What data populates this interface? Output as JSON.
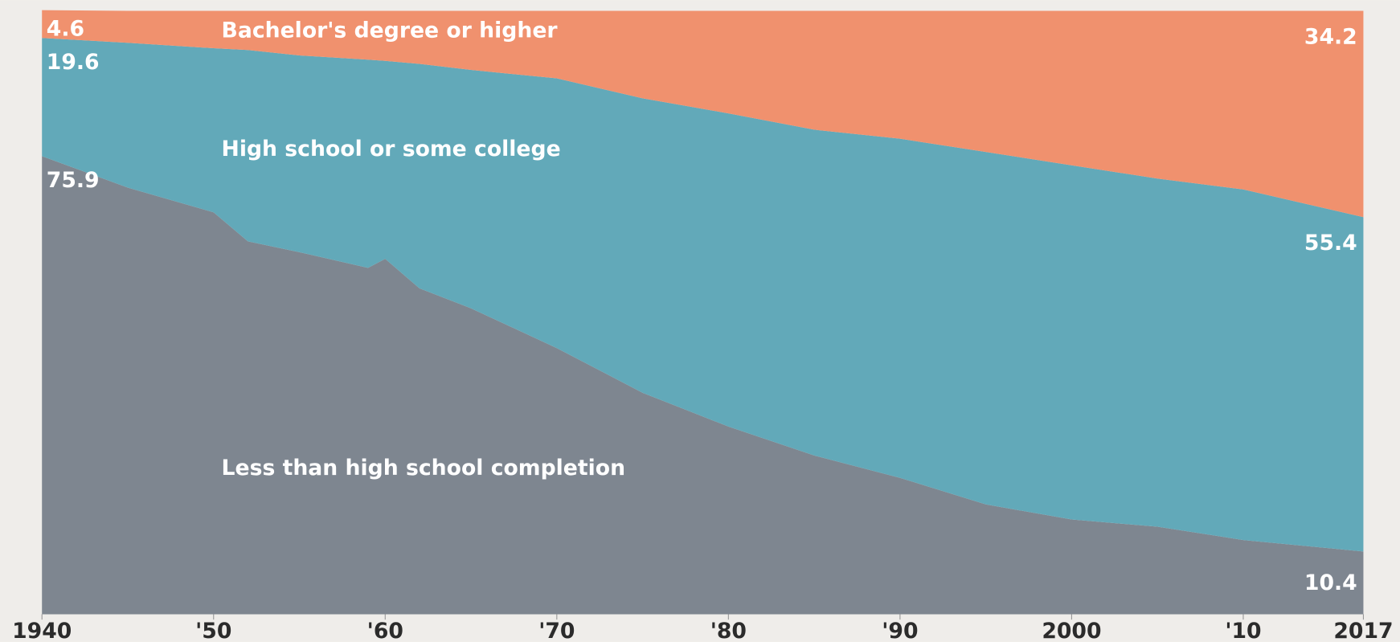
{
  "chart_data": {
    "type": "stacked-area",
    "x": [
      1940,
      1945,
      1950,
      1952,
      1955,
      1959,
      1960,
      1962,
      1965,
      1970,
      1975,
      1980,
      1985,
      1990,
      1995,
      2000,
      2005,
      2010,
      2017
    ],
    "series": [
      {
        "name": "Less than high school completion",
        "color": "#7e8690",
        "values": [
          75.9,
          70.7,
          66.6,
          61.8,
          60.0,
          57.4,
          58.9,
          54.0,
          50.7,
          44.1,
          36.7,
          31.1,
          26.3,
          22.6,
          18.2,
          15.7,
          14.5,
          12.3,
          10.4
        ]
      },
      {
        "name": "High school or some college",
        "color": "#62a9b9",
        "values": [
          19.6,
          24.0,
          27.2,
          31.7,
          32.6,
          34.5,
          32.8,
          37.2,
          39.5,
          44.7,
          48.8,
          51.9,
          54.0,
          56.2,
          58.4,
          58.7,
          57.7,
          58.1,
          55.4
        ]
      },
      {
        "name": "Bachelor's degree or higher",
        "color": "#f0916e",
        "values": [
          4.6,
          5.3,
          6.2,
          6.5,
          7.4,
          8.1,
          8.3,
          8.8,
          9.8,
          11.2,
          14.5,
          17.0,
          19.7,
          21.2,
          23.4,
          25.6,
          27.8,
          29.6,
          34.2
        ]
      }
    ],
    "xlim": [
      1940,
      2017
    ],
    "xticks": [
      1940,
      {
        "value": 1950,
        "label": "'50"
      },
      {
        "value": 1960,
        "label": "'60"
      },
      {
        "value": 1970,
        "label": "'70"
      },
      {
        "value": 1980,
        "label": "'80"
      },
      {
        "value": 1990,
        "label": "'90"
      },
      2000,
      {
        "value": 2010,
        "label": "'10"
      },
      2017
    ],
    "ylim": [
      0,
      100
    ]
  }
}
